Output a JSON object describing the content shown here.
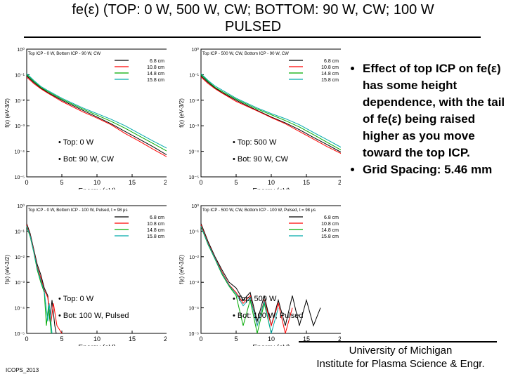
{
  "slide": {
    "title_line1": "fe(ε)  (TOP: 0 W, 500 W, CW; BOTTOM: 90 W, CW; 100 W",
    "title_line2": "PULSED",
    "bullets": [
      "Effect of top ICP on fe(ε) has some height dependence, with the tail of fe(ε) being raised higher as you move toward the top ICP.",
      "Grid Spacing: 5.46 mm"
    ],
    "footer_left": "ICOPS_2013",
    "footer_right_line1": "University of Michigan",
    "footer_right_line2": "Institute for Plasma Science & Engr."
  },
  "chart_data": [
    {
      "type": "line",
      "title": "Top ICP - 0 W, Bottom ICP - 90 W, CW",
      "xlabel": "Energy (eV)",
      "ylabel": "f(ε) (eV-3/2)",
      "xlim": [
        0,
        20
      ],
      "ylim_exp": [
        -5,
        0
      ],
      "log_y": true,
      "x_ticks": [
        "0",
        "5",
        "10",
        "15",
        "20"
      ],
      "y_ticks": [
        "10⁻⁵",
        "10⁻⁴",
        "10⁻³",
        "10⁻²",
        "10⁻¹",
        "10⁰"
      ],
      "legend_position": "top-right",
      "notes": [
        "• Top: 0 W",
        "• Bot: 90 W, CW"
      ],
      "series": [
        {
          "name": "6.8 cm",
          "color": "#000000",
          "x": [
            0,
            1,
            2,
            3,
            5,
            8,
            10,
            12,
            14,
            16,
            18,
            20
          ],
          "y": [
            0.09,
            0.05,
            0.03,
            0.02,
            0.01,
            0.004,
            0.0022,
            0.0012,
            0.0006,
            0.0003,
            0.00015,
            7e-05
          ]
        },
        {
          "name": "10.8 cm",
          "color": "#ff0000",
          "x": [
            0,
            1,
            2,
            3,
            5,
            8,
            10,
            12,
            14,
            16,
            18,
            20
          ],
          "y": [
            0.08,
            0.045,
            0.028,
            0.019,
            0.009,
            0.0035,
            0.002,
            0.0011,
            0.0005,
            0.00025,
            0.00012,
            6e-05
          ]
        },
        {
          "name": "14.8 cm",
          "color": "#00aa00",
          "x": [
            0,
            1,
            2,
            3,
            5,
            8,
            10,
            12,
            14,
            16,
            18,
            20
          ],
          "y": [
            0.1,
            0.055,
            0.032,
            0.022,
            0.011,
            0.0045,
            0.0026,
            0.0015,
            0.0008,
            0.0004,
            0.0002,
            0.0001
          ]
        },
        {
          "name": "15.8 cm",
          "color": "#00aaaa",
          "x": [
            0,
            1,
            2,
            3,
            5,
            8,
            10,
            12,
            14,
            16,
            18,
            20
          ],
          "y": [
            0.11,
            0.06,
            0.035,
            0.024,
            0.012,
            0.005,
            0.003,
            0.0018,
            0.001,
            0.0005,
            0.00025,
            0.00013
          ]
        }
      ]
    },
    {
      "type": "line",
      "title": "Top ICP - 500 W, CW, Bottom ICP - 90 W, CW",
      "xlabel": "Energy (eV)",
      "ylabel": "f(ε) (eV-3/2)",
      "xlim": [
        0,
        20
      ],
      "ylim_exp": [
        -5,
        0
      ],
      "log_y": true,
      "x_ticks": [
        "0",
        "5",
        "10",
        "15",
        "20"
      ],
      "y_ticks": [
        "10⁻⁵",
        "10⁻⁴",
        "10⁻³",
        "10⁻²",
        "10⁻¹",
        "10⁰"
      ],
      "legend_position": "top-right",
      "notes": [
        "• Top: 500 W",
        "• Bot: 90 W, CW"
      ],
      "series": [
        {
          "name": "6.8 cm",
          "color": "#000000",
          "x": [
            0,
            1,
            2,
            3,
            5,
            8,
            10,
            12,
            14,
            16,
            18,
            20
          ],
          "y": [
            0.09,
            0.05,
            0.03,
            0.02,
            0.01,
            0.004,
            0.0022,
            0.0013,
            0.0007,
            0.00035,
            0.00018,
            9e-05
          ]
        },
        {
          "name": "10.8 cm",
          "color": "#ff0000",
          "x": [
            0,
            1,
            2,
            3,
            5,
            8,
            10,
            12,
            14,
            16,
            18,
            20
          ],
          "y": [
            0.08,
            0.045,
            0.028,
            0.019,
            0.009,
            0.0038,
            0.0021,
            0.0012,
            0.0006,
            0.0003,
            0.00015,
            8e-05
          ]
        },
        {
          "name": "14.8 cm",
          "color": "#00aa00",
          "x": [
            0,
            1,
            2,
            3,
            5,
            8,
            10,
            12,
            14,
            16,
            18,
            20
          ],
          "y": [
            0.1,
            0.055,
            0.032,
            0.022,
            0.011,
            0.0045,
            0.0027,
            0.0016,
            0.0009,
            0.00045,
            0.00022,
            0.00011
          ]
        },
        {
          "name": "15.8 cm",
          "color": "#00aaaa",
          "x": [
            0,
            1,
            2,
            3,
            5,
            8,
            10,
            12,
            14,
            16,
            18,
            20
          ],
          "y": [
            0.11,
            0.06,
            0.036,
            0.025,
            0.012,
            0.005,
            0.003,
            0.0019,
            0.0011,
            0.00055,
            0.00028,
            0.00014
          ]
        }
      ]
    },
    {
      "type": "line",
      "title": "Top ICP - 0 W, Bottom ICP - 100 W, Pulsed, t = 98 μs",
      "xlabel": "Energy (eV)",
      "ylabel": "f(ε) (eV-3/2)",
      "xlim": [
        0,
        20
      ],
      "ylim_exp": [
        -5,
        0
      ],
      "log_y": true,
      "x_ticks": [
        "0",
        "5",
        "10",
        "15",
        "20"
      ],
      "y_ticks": [
        "10⁻⁵",
        "10⁻⁴",
        "10⁻³",
        "10⁻²",
        "10⁻¹",
        "10⁰"
      ],
      "legend_position": "top-right",
      "notes": [
        "• Top: 0 W",
        "• Bot: 100 W, Pulsed"
      ],
      "series": [
        {
          "name": "6.8 cm",
          "color": "#000000",
          "x": [
            0,
            0.5,
            1,
            1.5,
            2,
            2.5,
            3,
            3.3,
            3.6,
            4,
            4.2
          ],
          "y": [
            0.2,
            0.08,
            0.02,
            0.005,
            0.002,
            0.0006,
            0.0003,
            3e-05,
            0.0002,
            2e-05,
            1e-05
          ]
        },
        {
          "name": "10.8 cm",
          "color": "#ff0000",
          "x": [
            0,
            0.5,
            1,
            1.5,
            2,
            2.5,
            3,
            3.4,
            3.8,
            4.3,
            5
          ],
          "y": [
            0.18,
            0.07,
            0.018,
            0.004,
            0.0015,
            0.0005,
            0.00025,
            2e-05,
            0.00015,
            2e-05,
            1e-05
          ]
        },
        {
          "name": "14.8 cm",
          "color": "#00aa00",
          "x": [
            0,
            0.5,
            1,
            1.5,
            2,
            2.5,
            2.8,
            3.1,
            3.5
          ],
          "y": [
            0.15,
            0.06,
            0.015,
            0.003,
            0.001,
            0.0004,
            2e-05,
            0.00012,
            1e-05
          ]
        },
        {
          "name": "15.8 cm",
          "color": "#00aaaa",
          "x": [
            0,
            0.5,
            1,
            1.5,
            2,
            2.5,
            3,
            3.2,
            3.6
          ],
          "y": [
            0.16,
            0.065,
            0.016,
            0.0035,
            0.0012,
            0.00045,
            3e-05,
            0.00015,
            1e-05
          ]
        }
      ]
    },
    {
      "type": "line",
      "title": "Top ICP - 500 W, CW, Bottom ICP - 100 W, Pulsed, t = 98 μs",
      "xlabel": "Energy (eV)",
      "ylabel": "f(ε) (eV-3/2)",
      "xlim": [
        0,
        20
      ],
      "ylim_exp": [
        -5,
        0
      ],
      "log_y": true,
      "x_ticks": [
        "0",
        "5",
        "10",
        "15",
        "20"
      ],
      "y_ticks": [
        "10⁻⁵",
        "10⁻⁴",
        "10⁻³",
        "10⁻²",
        "10⁻¹",
        "10⁰"
      ],
      "legend_position": "top-right",
      "notes": [
        "• Top: 500 W",
        "• Bot: 100 W, Pulsed"
      ],
      "series": [
        {
          "name": "6.8 cm",
          "color": "#000000",
          "x": [
            0,
            1,
            2,
            3,
            4,
            5,
            6,
            7,
            8,
            9,
            10,
            11,
            12,
            13,
            14,
            15,
            16,
            17
          ],
          "y": [
            0.2,
            0.04,
            0.01,
            0.003,
            0.001,
            0.0006,
            0.0002,
            0.0004,
            3e-05,
            0.0003,
            2e-05,
            0.0002,
            2e-05,
            0.0003,
            2e-05,
            0.0002,
            2e-05,
            0.0001
          ]
        },
        {
          "name": "10.8 cm",
          "color": "#ff0000",
          "x": [
            0,
            1,
            2,
            3,
            4,
            5,
            6,
            7,
            8,
            9,
            10,
            11,
            12,
            13
          ],
          "y": [
            0.18,
            0.035,
            0.009,
            0.0025,
            0.0008,
            0.0004,
            0.00015,
            0.0003,
            2e-05,
            0.0002,
            2e-05,
            0.00015,
            1e-05,
            0.0001
          ]
        },
        {
          "name": "14.8 cm",
          "color": "#00aa00",
          "x": [
            0,
            1,
            2,
            3,
            4,
            5,
            6,
            7,
            8,
            9,
            10
          ],
          "y": [
            0.15,
            0.03,
            0.008,
            0.002,
            0.0007,
            0.0003,
            2e-05,
            0.0002,
            1e-05,
            0.00015,
            1e-05
          ]
        },
        {
          "name": "15.8 cm",
          "color": "#00aaaa",
          "x": [
            0,
            1,
            2,
            3,
            4,
            5,
            6,
            7,
            8,
            9,
            10,
            11
          ],
          "y": [
            0.16,
            0.032,
            0.0085,
            0.0022,
            0.00075,
            0.00035,
            0.00012,
            0.00025,
            2e-05,
            0.00018,
            1e-05,
            0.0001
          ]
        }
      ]
    }
  ]
}
